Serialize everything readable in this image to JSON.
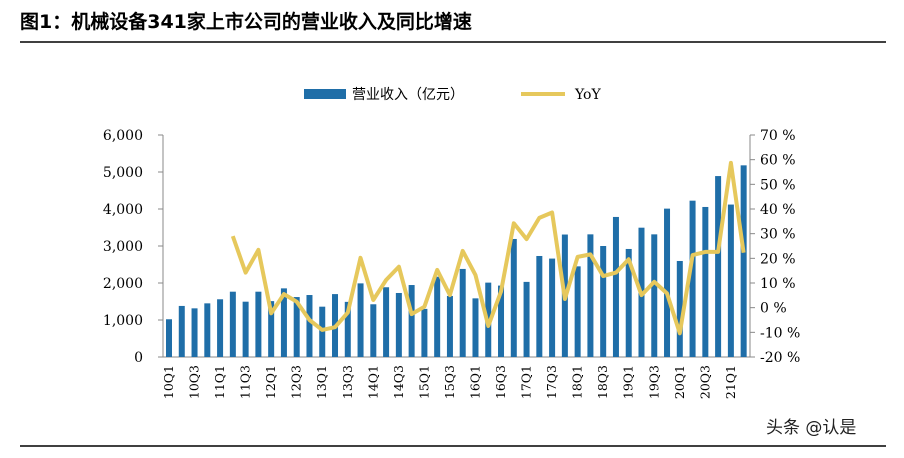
{
  "title": "图1：机械设备341家上市公司的营业收入及同比增速",
  "watermark": "头条 @认是",
  "colors": {
    "bar": "#1F6EA8",
    "line": "#E6C85C"
  },
  "chart_data": {
    "type": "bar+line",
    "title": "",
    "legend": {
      "position": "top",
      "entries": [
        "营业收入（亿元）",
        "YoY"
      ]
    },
    "grid": false,
    "categories": [
      "10Q1",
      "10Q2",
      "10Q3",
      "10Q4",
      "11Q1",
      "11Q2",
      "11Q3",
      "11Q4",
      "12Q1",
      "12Q2",
      "12Q3",
      "12Q4",
      "13Q1",
      "13Q2",
      "13Q3",
      "13Q4",
      "14Q1",
      "14Q2",
      "14Q3",
      "14Q4",
      "15Q1",
      "15Q2",
      "15Q3",
      "15Q4",
      "16Q1",
      "16Q2",
      "16Q3",
      "16Q4",
      "17Q1",
      "17Q2",
      "17Q3",
      "17Q4",
      "18Q1",
      "18Q2",
      "18Q3",
      "18Q4",
      "19Q1",
      "19Q2",
      "19Q3",
      "19Q4",
      "20Q1",
      "20Q2",
      "20Q3",
      "20Q4",
      "21Q1",
      "21Q2"
    ],
    "x_tick_labels": [
      "10Q1",
      "10Q3",
      "11Q1",
      "11Q3",
      "12Q1",
      "12Q3",
      "13Q1",
      "13Q3",
      "14Q1",
      "14Q3",
      "15Q1",
      "15Q3",
      "16Q1",
      "16Q3",
      "17Q1",
      "17Q3",
      "18Q1",
      "18Q3",
      "19Q1",
      "19Q3",
      "20Q1",
      "20Q3",
      "21Q1"
    ],
    "series": [
      {
        "name": "营业收入（亿元）",
        "axis": "left",
        "type": "bar",
        "values": [
          1020,
          1380,
          1315,
          1450,
          1560,
          1765,
          1495,
          1765,
          1510,
          1855,
          1620,
          1675,
          1360,
          1700,
          1490,
          1990,
          1425,
          1885,
          1730,
          1945,
          1300,
          2170,
          1650,
          2380,
          1585,
          2010,
          1930,
          3190,
          2030,
          2730,
          2660,
          3310,
          2450,
          3315,
          3000,
          3785,
          2920,
          3495,
          3315,
          4010,
          2595,
          4225,
          4055,
          4890,
          4120,
          5180
        ]
      },
      {
        "name": "YoY",
        "axis": "right",
        "type": "line",
        "unit": "%",
        "values": [
          null,
          null,
          null,
          null,
          null,
          29.0,
          14.2,
          23.4,
          -2.3,
          5.5,
          2.4,
          -5.0,
          -9.0,
          -7.9,
          -2.0,
          20.2,
          3.1,
          11.2,
          16.6,
          -2.6,
          0.4,
          15.3,
          5.1,
          23.0,
          13.2,
          -7.4,
          6.5,
          34.2,
          27.8,
          36.4,
          38.6,
          3.5,
          20.6,
          21.6,
          12.8,
          14.2,
          19.6,
          5.1,
          10.5,
          5.8,
          -10.4,
          21.3,
          22.6,
          22.6,
          58.7,
          22.3
        ]
      }
    ],
    "left_axis": {
      "range": [
        0,
        6000
      ],
      "ticks": [
        "0",
        "1,000",
        "2,000",
        "3,000",
        "4,000",
        "5,000",
        "6,000"
      ]
    },
    "right_axis": {
      "range": [
        -20,
        70
      ],
      "ticks": [
        "-20 %",
        "-10 %",
        "0 %",
        "10 %",
        "20 %",
        "30 %",
        "40 %",
        "50 %",
        "60 %",
        "70 %"
      ]
    }
  }
}
